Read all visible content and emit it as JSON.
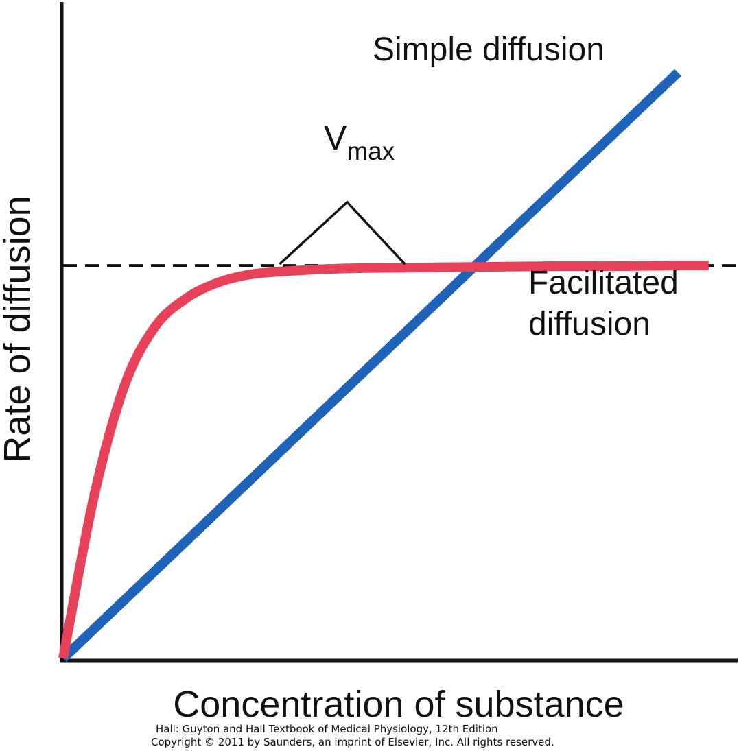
{
  "chart_data": {
    "type": "line",
    "title": "",
    "xlabel": "Concentration of substance",
    "ylabel": "Rate of diffusion",
    "xlim": [
      0,
      100
    ],
    "ylim": [
      0,
      100
    ],
    "grid": false,
    "x_ticks": [],
    "y_ticks": [],
    "series": [
      {
        "name": "Simple diffusion",
        "color": "#1f63b8",
        "x": [
          0,
          100
        ],
        "y": [
          0,
          94.4
        ]
      },
      {
        "name": "Facilitated diffusion",
        "color": "#e8415a",
        "x": [
          0,
          5,
          10,
          15,
          20,
          25,
          30,
          35,
          40,
          45,
          50,
          60,
          70,
          80,
          90,
          100,
          105
        ],
        "y": [
          0,
          26,
          44,
          53.5,
          58,
          60.5,
          61.8,
          62.3,
          62.6,
          62.8,
          62.9,
          63.0,
          63.1,
          63.2,
          63.2,
          63.3,
          63.3
        ]
      }
    ],
    "reference_lines": [
      {
        "type": "horizontal",
        "y": 63.3,
        "style": "dashed",
        "color": "#111111"
      }
    ],
    "annotations": [
      {
        "label_main": "V",
        "label_sub": "max",
        "points_to": [
          {
            "x": 35.2,
            "y": 63.3
          },
          {
            "x": 55.6,
            "y": 63.3
          }
        ],
        "apex": {
          "x": 46.2,
          "y": 73.5
        }
      }
    ]
  },
  "credit": {
    "line1": "Hall: Guyton and Hall Textbook of Medical Physiology, 12th Edition",
    "line2": "Copyright © 2011 by Saunders, an imprint of Elsevier, Inc. All rights reserved."
  }
}
